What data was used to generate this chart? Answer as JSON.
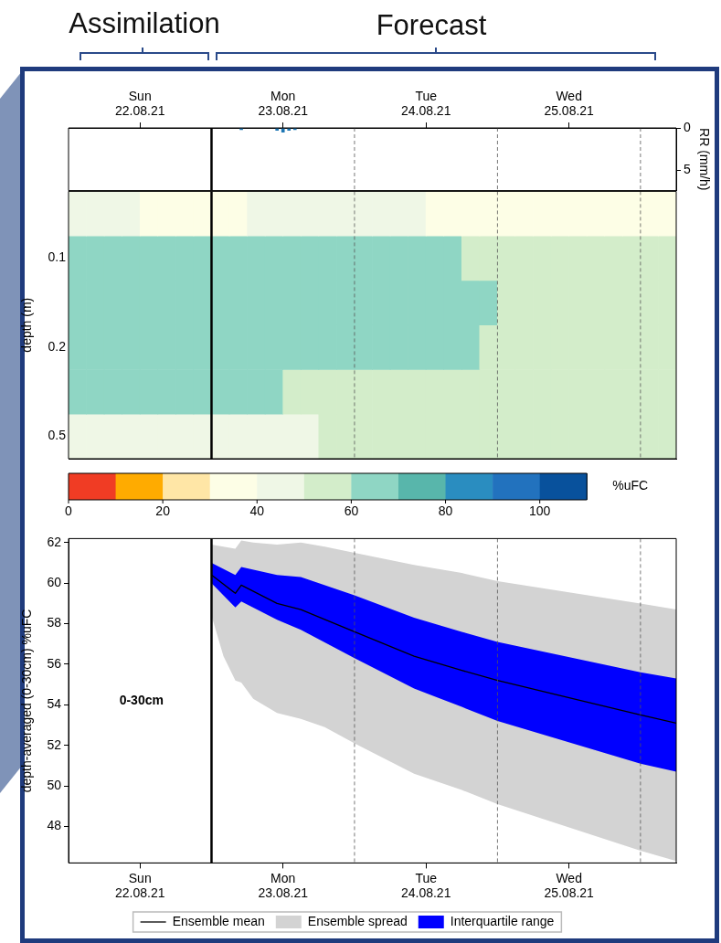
{
  "chart_data": [
    {
      "type": "bar",
      "ylabel": "RR (mm/h)",
      "annotations": [
        "Assimilation",
        "Forecast"
      ],
      "x": [
        "--08-23T05:00",
        "--08-23T11:00",
        "--08-23T12:00",
        "--08-23T13:00",
        "--08-23T14:00"
      ],
      "values": [
        0.2,
        0.3,
        0.5,
        0.3,
        0.2
      ],
      "color": "#1f77b4",
      "xlim": [
        "--08-22T00:00",
        "--08-26T06:00"
      ],
      "xticks": [
        {
          "value": "--08-22T12:00",
          "label": "Sun\n22.08.21"
        },
        {
          "value": "--08-23T12:00",
          "label": "Mon\n23.08.21"
        },
        {
          "value": "--08-24T12:00",
          "label": "Tue\n24.08.21"
        },
        {
          "value": "--08-25T12:00",
          "label": "Wed\n25.08.21"
        }
      ],
      "ylim": [
        7.4,
        0
      ],
      "yticks": [
        0,
        5
      ],
      "ref_lines": [
        {
          "axis": "x",
          "value": "--08-23T00:00",
          "line_style": "solid",
          "color": "#000000"
        },
        {
          "axis": "x",
          "value": "--08-24T00:00",
          "line_style": "dashed",
          "color": "#555555"
        },
        {
          "axis": "x",
          "value": "--08-25T00:00",
          "line_style": "dashed",
          "color": "#555555"
        },
        {
          "axis": "x",
          "value": "--08-26T00:00",
          "line_style": "dashed",
          "color": "#555555"
        }
      ]
    },
    {
      "type": "heatmap",
      "ylabel": "depth (m)",
      "clabel": "%uFC",
      "clim": [
        0,
        110
      ],
      "cticks": [
        0,
        20,
        40,
        60,
        80,
        100
      ],
      "tick_labels": "y",
      "x": [
        "--08-22T01:30",
        "--08-22T04:30",
        "--08-22T07:30",
        "--08-22T10:30",
        "--08-22T13:30",
        "--08-22T16:30",
        "--08-22T19:30",
        "--08-22T22:30",
        "--08-23T01:30",
        "--08-23T04:30",
        "--08-23T07:30",
        "--08-23T10:30",
        "--08-23T13:30",
        "--08-23T16:30",
        "--08-23T19:30",
        "--08-23T22:30",
        "--08-24T01:30",
        "--08-24T04:30",
        "--08-24T07:30",
        "--08-24T10:30",
        "--08-24T13:30",
        "--08-24T16:30",
        "--08-24T19:30",
        "--08-24T22:30",
        "--08-25T01:30",
        "--08-25T04:30",
        "--08-25T07:30",
        "--08-25T10:30",
        "--08-25T13:30",
        "--08-25T16:30",
        "--08-25T19:30",
        "--08-25T22:30",
        "--08-26T01:30",
        "--08-26T04:30"
      ],
      "xlim": [
        "--08-22T00:00",
        "--08-26T06:00"
      ],
      "y_categories": [
        null,
        "0.1",
        null,
        "0.2",
        null,
        "0.5"
      ],
      "cells": [
        [
          45,
          45,
          45,
          45,
          35,
          35,
          35,
          35,
          35,
          35,
          45,
          45,
          45,
          45,
          45,
          45,
          45,
          45,
          45,
          45,
          35,
          35,
          35,
          35,
          35,
          35,
          35,
          35,
          35,
          35,
          35,
          35,
          35,
          35
        ],
        [
          65,
          65,
          65,
          65,
          65,
          65,
          65,
          65,
          65,
          65,
          65,
          65,
          65,
          65,
          65,
          65,
          65,
          65,
          65,
          65,
          65,
          65,
          55,
          55,
          55,
          55,
          55,
          55,
          55,
          55,
          55,
          55,
          55,
          55
        ],
        [
          65,
          65,
          65,
          65,
          65,
          65,
          65,
          65,
          65,
          65,
          65,
          65,
          65,
          65,
          65,
          65,
          65,
          65,
          65,
          65,
          65,
          65,
          65,
          65,
          55,
          55,
          55,
          55,
          55,
          55,
          55,
          55,
          55,
          55
        ],
        [
          65,
          65,
          65,
          65,
          65,
          65,
          65,
          65,
          65,
          65,
          65,
          65,
          65,
          65,
          65,
          65,
          65,
          65,
          65,
          65,
          65,
          65,
          65,
          55,
          55,
          55,
          55,
          55,
          55,
          55,
          55,
          55,
          55,
          55
        ],
        [
          65,
          65,
          65,
          65,
          65,
          65,
          65,
          65,
          65,
          65,
          65,
          65,
          55,
          55,
          55,
          55,
          55,
          55,
          55,
          55,
          55,
          55,
          55,
          55,
          55,
          55,
          55,
          55,
          55,
          55,
          55,
          55,
          55,
          55
        ],
        [
          45,
          45,
          45,
          45,
          45,
          45,
          45,
          45,
          45,
          45,
          45,
          45,
          45,
          45,
          55,
          55,
          55,
          55,
          55,
          55,
          55,
          55,
          55,
          55,
          55,
          55,
          55,
          55,
          55,
          55,
          55,
          55,
          55,
          55
        ]
      ],
      "ref_lines": [
        {
          "axis": "x",
          "value": "--08-23T00:00",
          "line_style": "solid",
          "color": "#000000"
        },
        {
          "axis": "x",
          "value": "--08-24T00:00",
          "line_style": "dashed",
          "color": "#555555"
        },
        {
          "axis": "x",
          "value": "--08-25T00:00",
          "line_style": "dashed",
          "color": "#555555"
        },
        {
          "axis": "x",
          "value": "--08-26T00:00",
          "line_style": "dashed",
          "color": "#555555"
        }
      ]
    },
    {
      "type": "line",
      "ylabel": "depth-averaged (0-30cm) %uFC",
      "annotations": [
        "0-30cm"
      ],
      "legend": "bottom",
      "grid": false,
      "xlim": [
        "--08-22T00:00",
        "--08-26T06:00"
      ],
      "xticks": [
        {
          "value": "--08-22T12:00",
          "label": "Sun\n22.08.21"
        },
        {
          "value": "--08-23T12:00",
          "label": "Mon\n23.08.21"
        },
        {
          "value": "--08-24T12:00",
          "label": "Tue\n24.08.21"
        },
        {
          "value": "--08-25T12:00",
          "label": "Wed\n25.08.21"
        }
      ],
      "ylim": [
        46.2,
        62.2
      ],
      "yticks": [
        48,
        50,
        52,
        54,
        56,
        58,
        60,
        62
      ],
      "ref_lines": [
        {
          "axis": "x",
          "value": "--08-23T00:00",
          "line_style": "solid",
          "color": "#000000"
        },
        {
          "axis": "x",
          "value": "--08-24T00:00",
          "line_style": "dashed",
          "color": "#555555"
        },
        {
          "axis": "x",
          "value": "--08-25T00:00",
          "line_style": "dashed",
          "color": "#555555"
        },
        {
          "axis": "x",
          "value": "--08-26T00:00",
          "line_style": "dashed",
          "color": "#555555"
        }
      ],
      "series": [
        {
          "name": "Ensemble mean",
          "type": "line",
          "color": "#000000",
          "x": [
            "--08-23T00:00",
            "--08-23T04:00",
            "--08-23T05:00",
            "--08-23T11:00",
            "--08-23T15:00",
            "--08-24T00:00",
            "--08-24T10:00",
            "--08-24T18:00",
            "--08-25T00:00",
            "--08-26T00:00",
            "--08-26T06:00"
          ],
          "values": [
            60.4,
            59.5,
            59.9,
            59.0,
            58.7,
            57.6,
            56.4,
            55.7,
            55.2,
            53.5,
            53.1
          ]
        },
        {
          "name": "Ensemble spread",
          "type": "area",
          "color": "#d3d3d3",
          "values": [
            null,
            null,
            null,
            null,
            null,
            null,
            null,
            null,
            null,
            null,
            null,
            null,
            null,
            null
          ],
          "x": [
            "--08-23T00:00",
            "--08-23T02:00",
            "--08-23T04:00",
            "--08-23T05:00",
            "--08-23T07:00",
            "--08-23T11:00",
            "--08-23T15:00",
            "--08-23T19:00",
            "--08-24T00:00",
            "--08-24T10:00",
            "--08-24T18:00",
            "--08-25T00:00",
            "--08-26T00:00",
            "--08-26T06:00"
          ],
          "lower": [
            58.4,
            56.4,
            55.2,
            55.1,
            54.3,
            53.6,
            53.3,
            52.9,
            52.1,
            50.6,
            49.8,
            49.1,
            46.8,
            46.3
          ],
          "upper": [
            61.9,
            61.8,
            61.7,
            62.1,
            62.0,
            61.9,
            62.0,
            61.8,
            61.5,
            60.9,
            60.5,
            60.1,
            59.0,
            58.7
          ]
        },
        {
          "name": "Interquartile range",
          "type": "area",
          "color": "#0000ff",
          "values": [
            null,
            null,
            null,
            null,
            null,
            null,
            null,
            null,
            null,
            null,
            null
          ],
          "x": [
            "--08-23T00:00",
            "--08-23T04:00",
            "--08-23T05:00",
            "--08-23T11:00",
            "--08-23T15:00",
            "--08-24T00:00",
            "--08-24T10:00",
            "--08-24T18:00",
            "--08-25T00:00",
            "--08-26T00:00",
            "--08-26T06:00"
          ],
          "lower": [
            60.0,
            58.8,
            59.1,
            58.2,
            57.7,
            56.3,
            54.8,
            53.9,
            53.2,
            51.1,
            50.7
          ],
          "upper": [
            61.0,
            60.4,
            60.8,
            60.4,
            60.3,
            59.4,
            58.3,
            57.6,
            57.1,
            55.6,
            55.3
          ]
        }
      ]
    }
  ]
}
